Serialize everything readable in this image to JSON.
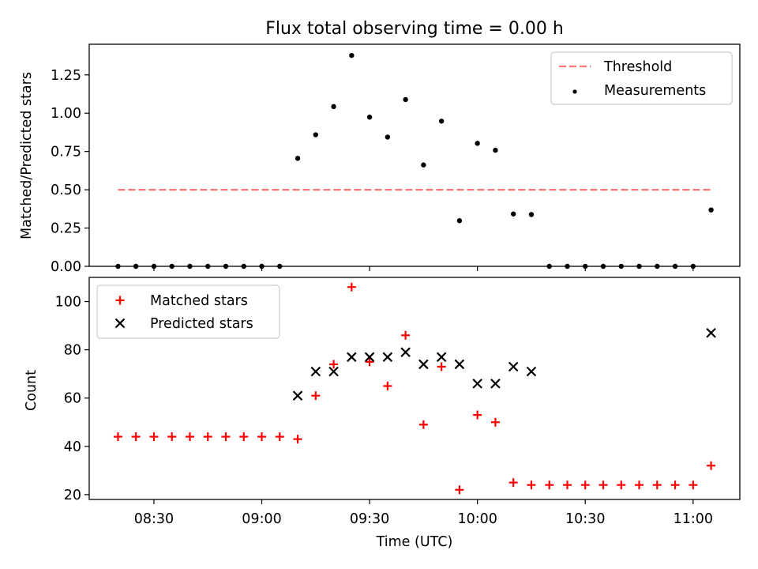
{
  "chart_data": [
    {
      "type": "scatter",
      "title": "Flux total observing time = 0.00 h",
      "xlabel": "",
      "ylabel": "Matched/Predicted stars",
      "ylim": [
        0.0,
        1.45
      ],
      "yticks": [
        0.0,
        0.25,
        0.5,
        0.75,
        1.0,
        1.25
      ],
      "ytick_labels": [
        "0.00",
        "0.25",
        "0.50",
        "0.75",
        "1.00",
        "1.25"
      ],
      "x_range": [
        "08:12",
        "11:13"
      ],
      "xticks": [
        "08:30",
        "09:00",
        "09:30",
        "10:00",
        "10:30",
        "11:00"
      ],
      "xtick_labels_shown": false,
      "legend_position": "top-right",
      "series": [
        {
          "name": "Threshold",
          "kind": "dashed-line",
          "color": "#ff7777",
          "x": [
            "08:20",
            "11:05"
          ],
          "y": [
            0.5,
            0.5
          ]
        },
        {
          "name": "Measurements",
          "kind": "dots",
          "color": "#000000",
          "x": [
            "08:20",
            "08:25",
            "08:30",
            "08:35",
            "08:40",
            "08:45",
            "08:50",
            "08:55",
            "09:00",
            "09:05",
            "09:10",
            "09:15",
            "09:20",
            "09:25",
            "09:30",
            "09:35",
            "09:40",
            "09:45",
            "09:50",
            "09:55",
            "10:00",
            "10:05",
            "10:10",
            "10:15",
            "10:20",
            "10:25",
            "10:30",
            "10:35",
            "10:40",
            "10:45",
            "10:50",
            "10:55",
            "11:00",
            "11:05"
          ],
          "y": [
            0,
            0,
            0,
            0,
            0,
            0,
            0,
            0,
            0,
            0,
            0.705,
            0.859,
            1.043,
            1.377,
            0.974,
            0.844,
            1.089,
            0.662,
            0.948,
            0.298,
            0.803,
            0.758,
            0.342,
            0.338,
            0,
            0,
            0,
            0,
            0,
            0,
            0,
            0,
            0,
            0.368
          ]
        }
      ]
    },
    {
      "type": "scatter",
      "title": "",
      "xlabel": "Time (UTC)",
      "ylabel": "Count",
      "ylim": [
        18,
        110
      ],
      "yticks": [
        20,
        40,
        60,
        80,
        100
      ],
      "ytick_labels": [
        "20",
        "40",
        "60",
        "80",
        "100"
      ],
      "x_range": [
        "08:12",
        "11:13"
      ],
      "xticks": [
        "08:30",
        "09:00",
        "09:30",
        "10:00",
        "10:30",
        "11:00"
      ],
      "xtick_labels": [
        "08:30",
        "09:00",
        "09:30",
        "10:00",
        "10:30",
        "11:00"
      ],
      "legend_position": "top-left",
      "series": [
        {
          "name": "Matched stars",
          "marker": "plus",
          "color": "#ff0000",
          "x": [
            "08:20",
            "08:25",
            "08:30",
            "08:35",
            "08:40",
            "08:45",
            "08:50",
            "08:55",
            "09:00",
            "09:05",
            "09:10",
            "09:15",
            "09:20",
            "09:25",
            "09:30",
            "09:35",
            "09:40",
            "09:45",
            "09:50",
            "09:55",
            "10:00",
            "10:05",
            "10:10",
            "10:15",
            "10:20",
            "10:25",
            "10:30",
            "10:35",
            "10:40",
            "10:45",
            "10:50",
            "10:55",
            "11:00",
            "11:05"
          ],
          "y": [
            44,
            44,
            44,
            44,
            44,
            44,
            44,
            44,
            44,
            44,
            43,
            61,
            74,
            106,
            75,
            65,
            86,
            49,
            73,
            22,
            53,
            50,
            25,
            24,
            24,
            24,
            24,
            24,
            24,
            24,
            24,
            24,
            24,
            32
          ]
        },
        {
          "name": "Predicted stars",
          "marker": "x",
          "color": "#000000",
          "x": [
            "09:10",
            "09:15",
            "09:20",
            "09:25",
            "09:30",
            "09:35",
            "09:40",
            "09:45",
            "09:50",
            "09:55",
            "10:00",
            "10:05",
            "10:10",
            "10:15",
            "11:05"
          ],
          "y": [
            61,
            71,
            71,
            77,
            77,
            77,
            79,
            74,
            77,
            74,
            66,
            66,
            73,
            71,
            87
          ]
        }
      ]
    }
  ]
}
